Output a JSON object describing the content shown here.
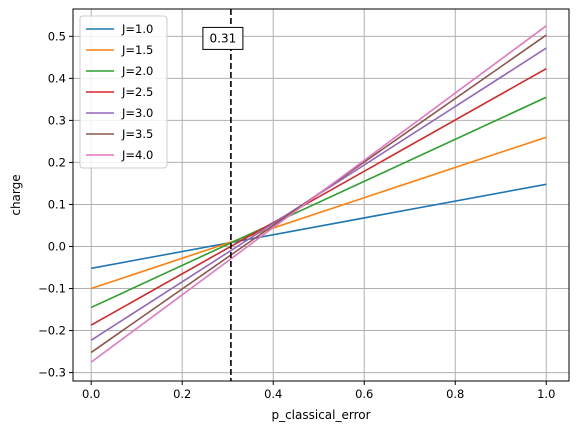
{
  "chart_data": {
    "type": "line",
    "xlabel": "p_classical_error",
    "ylabel": "charge",
    "xlim": [
      -0.04,
      1.05
    ],
    "ylim": [
      -0.32,
      0.565
    ],
    "grid": true,
    "legend_position": "top-left",
    "x_ticks": [
      0.0,
      0.2,
      0.4,
      0.6,
      0.8,
      1.0
    ],
    "x_tick_labels": [
      "0.0",
      "0.2",
      "0.4",
      "0.6",
      "0.8",
      "1.0"
    ],
    "y_ticks": [
      -0.3,
      -0.2,
      -0.1,
      0.0,
      0.1,
      0.2,
      0.3,
      0.4,
      0.5
    ],
    "y_tick_labels": [
      "−0.3",
      "−0.2",
      "−0.1",
      "0.0",
      "0.1",
      "0.2",
      "0.3",
      "0.4",
      "0.5"
    ],
    "x": [
      0.0,
      1.0
    ],
    "series": [
      {
        "name": "J=1.0",
        "color": "#1f77b4",
        "values": [
          -0.052,
          0.148
        ]
      },
      {
        "name": "J=1.5",
        "color": "#ff7f0e",
        "values": [
          -0.1,
          0.26
        ]
      },
      {
        "name": "J=2.0",
        "color": "#2ca02c",
        "values": [
          -0.145,
          0.355
        ]
      },
      {
        "name": "J=2.5",
        "color": "#d62728",
        "values": [
          -0.187,
          0.423
        ]
      },
      {
        "name": "J=3.0",
        "color": "#9467bd",
        "values": [
          -0.223,
          0.472
        ]
      },
      {
        "name": "J=3.5",
        "color": "#8c564b",
        "values": [
          -0.252,
          0.503
        ]
      },
      {
        "name": "J=4.0",
        "color": "#e377c2",
        "values": [
          -0.275,
          0.525
        ]
      }
    ],
    "vline": {
      "x": 0.307,
      "style": "dashed",
      "color": "#000000"
    },
    "annotation": {
      "text": "0.31",
      "x": 0.307,
      "y": 0.495
    }
  }
}
